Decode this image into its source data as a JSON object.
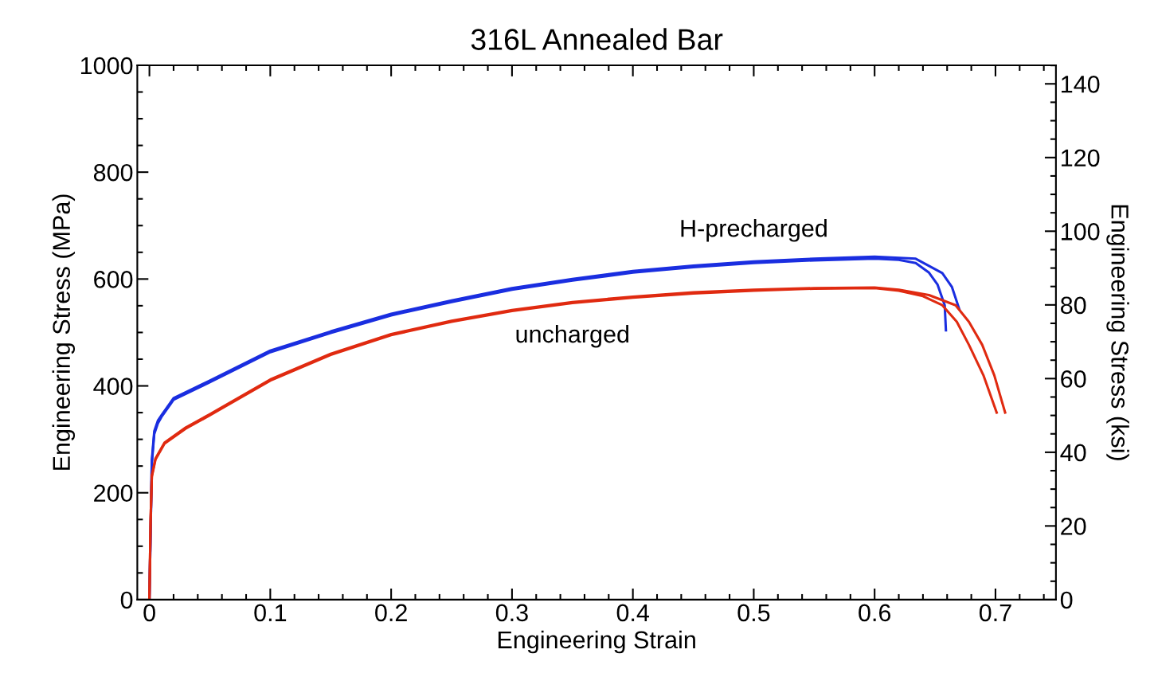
{
  "chart_data": {
    "type": "line",
    "title": "316L Annealed Bar",
    "xlabel": "Engineering Strain",
    "ylabel": "Engineering Stress (MPa)",
    "y2label": "Engineering Stress (ksi)",
    "xlim": [
      -0.01,
      0.75
    ],
    "xticks": [
      0,
      0.1,
      0.2,
      0.3,
      0.4,
      0.5,
      0.6,
      0.7
    ],
    "ylim": [
      0,
      1000
    ],
    "yticks": [
      0,
      200,
      400,
      600,
      800,
      1000
    ],
    "y2lim": [
      0,
      145.04
    ],
    "y2ticks": [
      0,
      20,
      40,
      60,
      80,
      100,
      120,
      140
    ],
    "grid": false,
    "legend": false,
    "marker": "none",
    "line_style": "solid",
    "series": [
      {
        "name": "H-precharged",
        "color": "#1a2ee0",
        "x": [
          0,
          0.002,
          0.004,
          0.007,
          0.01,
          0.02,
          0.05,
          0.1,
          0.15,
          0.2,
          0.25,
          0.3,
          0.35,
          0.4,
          0.45,
          0.5,
          0.55,
          0.6,
          0.634,
          0.656,
          0.664,
          0.67
        ],
        "values": [
          0,
          260,
          315,
          335,
          345,
          377,
          410,
          466,
          502,
          535,
          560,
          583,
          600,
          615,
          625,
          633,
          638,
          642,
          638,
          611,
          585,
          544
        ]
      },
      {
        "color": "#1a2ee0",
        "x": [
          0,
          0.002,
          0.004,
          0.007,
          0.01,
          0.02,
          0.05,
          0.1,
          0.15,
          0.2,
          0.25,
          0.3,
          0.35,
          0.4,
          0.45,
          0.5,
          0.55,
          0.6,
          0.62,
          0.634,
          0.645,
          0.652,
          0.658,
          0.659
        ],
        "values": [
          0,
          255,
          310,
          330,
          342,
          374,
          407,
          463,
          499,
          532,
          557,
          580,
          597,
          612,
          622,
          630,
          635,
          638,
          636,
          630,
          612,
          590,
          551,
          504
        ]
      },
      {
        "name": "uncharged",
        "color": "#e02a10",
        "x": [
          0,
          0.001,
          0.002,
          0.005,
          0.0125,
          0.03,
          0.05,
          0.1,
          0.15,
          0.2,
          0.25,
          0.3,
          0.35,
          0.4,
          0.45,
          0.5,
          0.55,
          0.6,
          0.62,
          0.64,
          0.656,
          0.668,
          0.678,
          0.69,
          0.701
        ],
        "values": [
          0,
          150,
          230,
          262,
          292,
          320,
          345,
          410,
          458,
          495,
          520,
          540,
          555,
          565,
          573,
          578,
          582,
          583,
          578,
          568,
          551,
          520,
          477,
          420,
          350
        ]
      },
      {
        "color": "#e02a10",
        "x": [
          0,
          0.001,
          0.002,
          0.005,
          0.0125,
          0.03,
          0.05,
          0.1,
          0.15,
          0.2,
          0.25,
          0.3,
          0.35,
          0.4,
          0.45,
          0.5,
          0.55,
          0.6,
          0.62,
          0.645,
          0.667,
          0.678,
          0.689,
          0.699,
          0.708
        ],
        "values": [
          0,
          150,
          232,
          264,
          294,
          322,
          347,
          412,
          460,
          497,
          522,
          542,
          557,
          567,
          575,
          580,
          583,
          584,
          580,
          570,
          551,
          520,
          477,
          420,
          350
        ]
      }
    ]
  }
}
